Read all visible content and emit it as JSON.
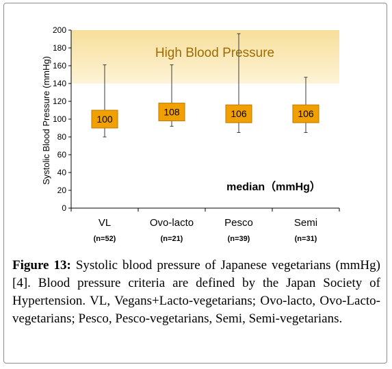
{
  "chart_data": {
    "type": "box-range",
    "ylabel": "Systolic Blood Pressure  (mmHg)",
    "ylim": [
      0,
      200
    ],
    "yticks": [
      0,
      20,
      40,
      60,
      80,
      100,
      120,
      140,
      160,
      180,
      200
    ],
    "categories": [
      "VL",
      "Ovo-lacto",
      "Pesco",
      "Semi"
    ],
    "sample_sizes": [
      "(n=52)",
      "(n=21)",
      "(n=39)",
      "(n=31)"
    ],
    "series": [
      {
        "median": [
          100,
          108,
          106,
          106
        ],
        "min": [
          80,
          92,
          85,
          85
        ],
        "max": [
          161,
          161,
          196,
          147
        ]
      }
    ],
    "median_labels": [
      "100",
      "108",
      "106",
      "106"
    ],
    "band": {
      "from": 140,
      "to": 200,
      "label": "High Blood Pressure"
    },
    "annotation": "median（mmHg）",
    "grid": false,
    "colors": {
      "median_box": "#f0a000",
      "median_box_border": "#c07800",
      "band_top": "#f7de9a",
      "band_bottom": "#fdf3d6",
      "band_text": "#a06b00",
      "whisker": "#3a3a3a"
    }
  },
  "caption": {
    "label": "Figure 13:",
    "text": " Systolic blood pressure of Japanese vegetarians (mmHg) [4]. Blood pressure criteria are defined by the Japan Society of Hypertension. VL, Vegans+Lacto-vegetarians; Ovo-lacto, Ovo-Lacto-vegetarians; Pesco, Pesco-vegetarians, Semi, Semi-vegetarians."
  }
}
